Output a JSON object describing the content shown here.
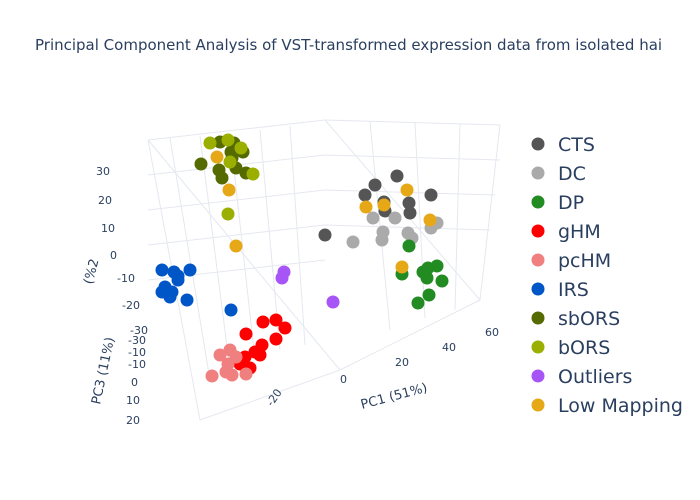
{
  "chart_data": {
    "type": "scatter",
    "title": "Principal Component Analysis of VST-transformed expression data from isolated hai",
    "axes": {
      "x": {
        "label": "PC1 (51%)",
        "ticks": [
          "0",
          "20",
          "40",
          "60"
        ]
      },
      "y": {
        "label": "PC2",
        "ticks": [
          "-20"
        ]
      },
      "z": {
        "label": "PC3 (11%)",
        "ticks": [
          "20",
          "10",
          "0",
          "-10",
          "-20",
          "-30",
          "-30"
        ]
      },
      "left": {
        "label": "(%2",
        "ticks": [
          "30",
          "20",
          "10",
          "0",
          "-10",
          "-20"
        ]
      }
    },
    "legend_position": "right",
    "series": [
      {
        "name": "CTS",
        "color": "#555555",
        "values": [
          [
            375,
            185
          ],
          [
            397,
            176
          ],
          [
            365,
            195
          ],
          [
            384,
            202
          ],
          [
            385,
            211
          ],
          [
            409,
            203
          ],
          [
            410,
            213
          ],
          [
            431,
            195
          ],
          [
            325,
            235
          ]
        ]
      },
      {
        "name": "DC",
        "color": "#aaaaaa",
        "values": [
          [
            373,
            218
          ],
          [
            383,
            232
          ],
          [
            382,
            240
          ],
          [
            395,
            218
          ],
          [
            408,
            233
          ],
          [
            412,
            238
          ],
          [
            431,
            228
          ],
          [
            437,
            223
          ],
          [
            353,
            242
          ]
        ]
      },
      {
        "name": "DP",
        "color": "#228b22",
        "values": [
          [
            409,
            246
          ],
          [
            402,
            274
          ],
          [
            423,
            272
          ],
          [
            428,
            268
          ],
          [
            437,
            266
          ],
          [
            427,
            278
          ],
          [
            442,
            281
          ],
          [
            429,
            295
          ],
          [
            418,
            303
          ]
        ]
      },
      {
        "name": "gHM",
        "color": "#ff0000",
        "values": [
          [
            246,
            334
          ],
          [
            263,
            322
          ],
          [
            276,
            320
          ],
          [
            285,
            328
          ],
          [
            276,
            339
          ],
          [
            262,
            345
          ],
          [
            255,
            352
          ],
          [
            245,
            357
          ],
          [
            240,
            364
          ],
          [
            250,
            368
          ],
          [
            260,
            355
          ]
        ]
      },
      {
        "name": "pcHM",
        "color": "#f08080",
        "values": [
          [
            220,
            355
          ],
          [
            230,
            350
          ],
          [
            236,
            357
          ],
          [
            228,
            364
          ],
          [
            232,
            375
          ],
          [
            246,
            374
          ],
          [
            212,
            376
          ],
          [
            226,
            372
          ]
        ]
      },
      {
        "name": "IRS",
        "color": "#0056c6",
        "values": [
          [
            162,
            270
          ],
          [
            174,
            272
          ],
          [
            190,
            270
          ],
          [
            178,
            276
          ],
          [
            165,
            287
          ],
          [
            172,
            292
          ],
          [
            162,
            292
          ],
          [
            170,
            297
          ],
          [
            187,
            300
          ],
          [
            178,
            280
          ],
          [
            231,
            310
          ]
        ]
      },
      {
        "name": "sbORS",
        "color": "#556b00",
        "values": [
          [
            201,
            164
          ],
          [
            220,
            142
          ],
          [
            234,
            143
          ],
          [
            243,
            152
          ],
          [
            232,
            158
          ],
          [
            219,
            170
          ],
          [
            236,
            168
          ],
          [
            246,
            173
          ],
          [
            222,
            178
          ],
          [
            231,
            152
          ]
        ]
      },
      {
        "name": "bORS",
        "color": "#9aaf00",
        "values": [
          [
            210,
            143
          ],
          [
            228,
            140
          ],
          [
            241,
            148
          ],
          [
            230,
            162
          ],
          [
            253,
            174
          ],
          [
            228,
            214
          ]
        ]
      },
      {
        "name": "Outliers",
        "color": "#a855f7",
        "values": [
          [
            284,
            272
          ],
          [
            282,
            278
          ],
          [
            333,
            302
          ]
        ]
      },
      {
        "name": "Low Mapping",
        "color": "#e6a817",
        "values": [
          [
            217,
            157
          ],
          [
            229,
            190
          ],
          [
            236,
            246
          ],
          [
            366,
            207
          ],
          [
            384,
            205
          ],
          [
            407,
            190
          ],
          [
            430,
            220
          ],
          [
            402,
            267
          ]
        ]
      }
    ]
  }
}
